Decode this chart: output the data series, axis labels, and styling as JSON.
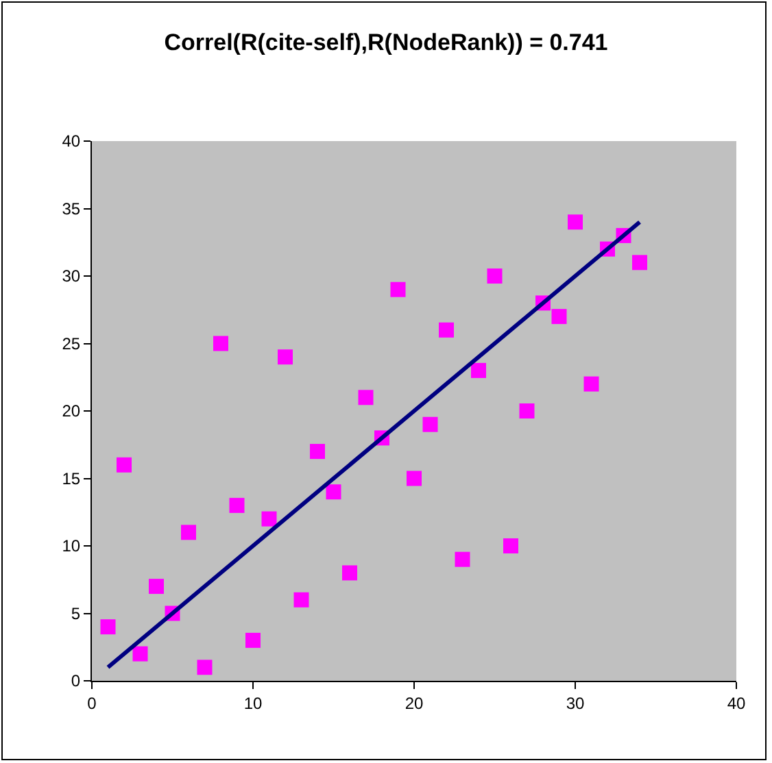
{
  "chart_data": {
    "type": "scatter",
    "title": "Correl(R(cite-self),R(NodeRank)) = 0.741",
    "xlim": [
      0,
      40
    ],
    "xticks": [
      0,
      10,
      20,
      30,
      40
    ],
    "ylim": [
      0,
      40
    ],
    "yticks": [
      0,
      5,
      10,
      15,
      20,
      25,
      30,
      35,
      40
    ],
    "grid": false,
    "series": [
      {
        "marker": "square",
        "color": "#ff00ff",
        "x": [
          1,
          2,
          3,
          4,
          5,
          6,
          7,
          8,
          9,
          10,
          11,
          12,
          13,
          14,
          15,
          16,
          17,
          18,
          19,
          20,
          21,
          22,
          23,
          24,
          25,
          26,
          27,
          28,
          29,
          30,
          31,
          32,
          33,
          34
        ],
        "values": [
          4,
          16,
          2,
          7,
          5,
          11,
          1,
          25,
          13,
          3,
          12,
          24,
          6,
          17,
          14,
          8,
          21,
          18,
          29,
          15,
          19,
          26,
          9,
          23,
          30,
          10,
          20,
          28,
          27,
          34,
          22,
          32,
          33,
          31
        ]
      },
      {
        "type": "line",
        "color": "#000080",
        "x": [
          1,
          5,
          10,
          15,
          20,
          25,
          30,
          34
        ],
        "values": [
          1,
          5,
          10,
          15,
          20,
          25,
          30,
          34
        ]
      }
    ]
  }
}
